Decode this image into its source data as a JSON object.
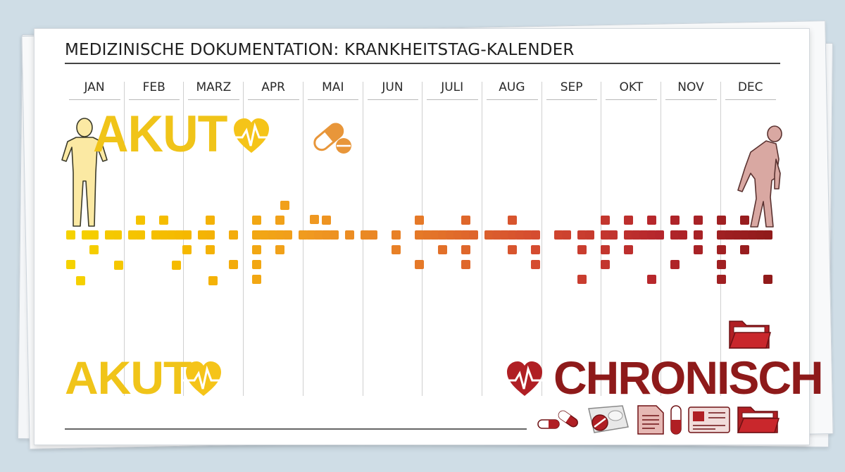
{
  "title": "MEDIZINISCHE DOKUMENTATION: KRANKHEITSTAG-KALENDER",
  "months": [
    "JAN",
    "FEB",
    "MARZ",
    "APR",
    "MAI",
    "JUN",
    "JULI",
    "AUG",
    "SEP",
    "OKT",
    "NOV",
    "DEC"
  ],
  "labels": {
    "akut_top": "AKUT",
    "akut_bottom": "AKUT",
    "chronisch": "CHRONISCH"
  },
  "colors": {
    "akut": "#f0c419",
    "chronisch": "#8e1a1a",
    "gradient": [
      "#f5d200",
      "#f5b800",
      "#f09a20",
      "#e57828",
      "#d44a30",
      "#b5262c",
      "#8e1a1a"
    ]
  },
  "icons": {
    "top": [
      "healthy-person-icon",
      "heart-pulse-icon",
      "pill-icon"
    ],
    "right": [
      "sick-elderly-person-icon",
      "folder-icon"
    ],
    "bottom_left": [
      "heart-pulse-icon"
    ],
    "bottom_right": [
      "heart-pulse-icon",
      "pill-icon",
      "pill-box-icon",
      "document-icon",
      "capsule-icon",
      "id-card-icon",
      "folder-icon"
    ]
  }
}
